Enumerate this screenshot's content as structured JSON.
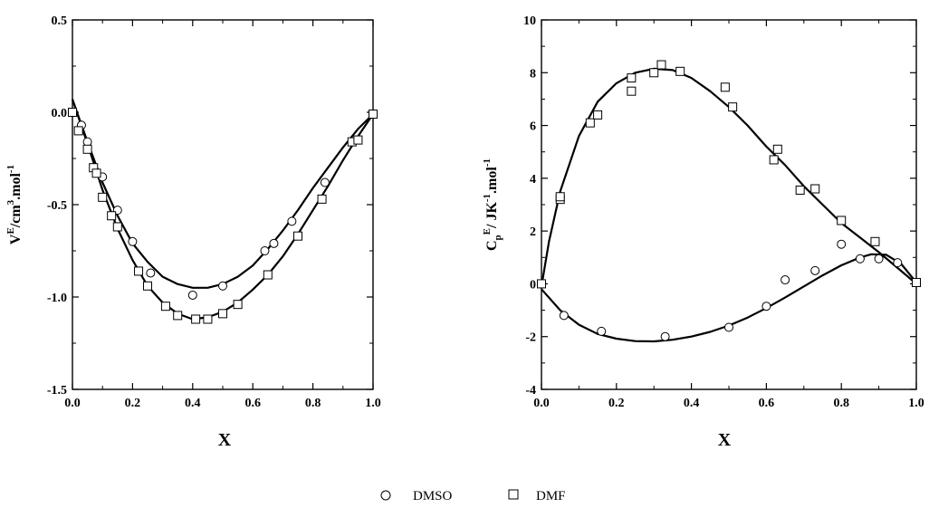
{
  "chart_data": [
    {
      "type": "scatter",
      "xlabel": "X",
      "ylabel_parts": {
        "main": "V",
        "sup": "E",
        "rest": "/cm",
        "sup2": "3",
        "rest2": ".mol",
        "sup3": "-1"
      },
      "xlim": [
        0,
        1
      ],
      "ylim": [
        -1.5,
        0.5
      ],
      "x_ticks": [
        "0.0",
        "0.2",
        "0.4",
        "0.6",
        "0.8",
        "1.0"
      ],
      "y_ticks": [
        "-1.5",
        "-1.0",
        "-0.5",
        "0.0",
        "0.5"
      ],
      "y_tick_values": [
        -1.5,
        -1.0,
        -0.5,
        0.0,
        0.5
      ],
      "grid": false,
      "series": [
        {
          "name": "DMSO",
          "marker": "circle",
          "points": [
            [
              0.0,
              0.0
            ],
            [
              0.03,
              -0.07
            ],
            [
              0.05,
              -0.16
            ],
            [
              0.1,
              -0.35
            ],
            [
              0.15,
              -0.53
            ],
            [
              0.2,
              -0.7
            ],
            [
              0.26,
              -0.87
            ],
            [
              0.4,
              -0.99
            ],
            [
              0.5,
              -0.94
            ],
            [
              0.64,
              -0.75
            ],
            [
              0.67,
              -0.71
            ],
            [
              0.73,
              -0.59
            ],
            [
              0.84,
              -0.38
            ],
            [
              1.0,
              -0.01
            ]
          ],
          "fit": [
            [
              0.0,
              0.07
            ],
            [
              0.05,
              -0.16
            ],
            [
              0.1,
              -0.38
            ],
            [
              0.15,
              -0.56
            ],
            [
              0.2,
              -0.71
            ],
            [
              0.25,
              -0.81
            ],
            [
              0.3,
              -0.89
            ],
            [
              0.35,
              -0.93
            ],
            [
              0.4,
              -0.95
            ],
            [
              0.45,
              -0.95
            ],
            [
              0.5,
              -0.93
            ],
            [
              0.55,
              -0.89
            ],
            [
              0.6,
              -0.83
            ],
            [
              0.65,
              -0.74
            ],
            [
              0.7,
              -0.64
            ],
            [
              0.75,
              -0.53
            ],
            [
              0.8,
              -0.41
            ],
            [
              0.85,
              -0.3
            ],
            [
              0.9,
              -0.19
            ],
            [
              0.95,
              -0.09
            ],
            [
              1.0,
              -0.01
            ]
          ]
        },
        {
          "name": "DMF",
          "marker": "square",
          "points": [
            [
              0.0,
              0.0
            ],
            [
              0.02,
              -0.1
            ],
            [
              0.05,
              -0.2
            ],
            [
              0.07,
              -0.3
            ],
            [
              0.08,
              -0.33
            ],
            [
              0.1,
              -0.46
            ],
            [
              0.13,
              -0.56
            ],
            [
              0.15,
              -0.62
            ],
            [
              0.22,
              -0.86
            ],
            [
              0.25,
              -0.94
            ],
            [
              0.31,
              -1.05
            ],
            [
              0.35,
              -1.1
            ],
            [
              0.41,
              -1.12
            ],
            [
              0.45,
              -1.12
            ],
            [
              0.5,
              -1.09
            ],
            [
              0.55,
              -1.04
            ],
            [
              0.65,
              -0.88
            ],
            [
              0.75,
              -0.67
            ],
            [
              0.83,
              -0.47
            ],
            [
              0.93,
              -0.16
            ],
            [
              0.95,
              -0.15
            ],
            [
              1.0,
              -0.01
            ]
          ]
        },
        {
          "name": "DMF fit",
          "marker": "none",
          "points": [],
          "fit": [
            [
              0.0,
              0.07
            ],
            [
              0.05,
              -0.17
            ],
            [
              0.1,
              -0.42
            ],
            [
              0.15,
              -0.63
            ],
            [
              0.2,
              -0.8
            ],
            [
              0.25,
              -0.94
            ],
            [
              0.3,
              -1.03
            ],
            [
              0.35,
              -1.09
            ],
            [
              0.4,
              -1.12
            ],
            [
              0.45,
              -1.11
            ],
            [
              0.5,
              -1.08
            ],
            [
              0.55,
              -1.03
            ],
            [
              0.6,
              -0.96
            ],
            [
              0.65,
              -0.88
            ],
            [
              0.7,
              -0.78
            ],
            [
              0.75,
              -0.66
            ],
            [
              0.8,
              -0.53
            ],
            [
              0.85,
              -0.4
            ],
            [
              0.9,
              -0.26
            ],
            [
              0.95,
              -0.13
            ],
            [
              1.0,
              -0.01
            ]
          ]
        }
      ]
    },
    {
      "type": "scatter",
      "xlabel": "X",
      "ylabel_parts": {
        "main": "C",
        "sub": "p",
        "sup": "E",
        "rest": "/ JK",
        "sup2": "-1",
        "rest2": ".mol",
        "sup3": "-1"
      },
      "xlim": [
        0,
        1
      ],
      "ylim": [
        -4,
        10
      ],
      "x_ticks": [
        "0.0",
        "0.2",
        "0.4",
        "0.6",
        "0.8",
        "1.0"
      ],
      "y_ticks": [
        "-4",
        "-2",
        "0",
        "2",
        "4",
        "6",
        "8",
        "10"
      ],
      "y_tick_values": [
        -4,
        -2,
        0,
        2,
        4,
        6,
        8,
        10
      ],
      "grid": false,
      "series": [
        {
          "name": "DMSO",
          "marker": "circle",
          "points": [
            [
              0.0,
              0.0
            ],
            [
              0.06,
              -1.2
            ],
            [
              0.16,
              -1.8
            ],
            [
              0.33,
              -2.0
            ],
            [
              0.5,
              -1.65
            ],
            [
              0.6,
              -0.85
            ],
            [
              0.65,
              0.15
            ],
            [
              0.73,
              0.5
            ],
            [
              0.8,
              1.5
            ],
            [
              0.85,
              0.95
            ],
            [
              0.9,
              0.95
            ],
            [
              0.95,
              0.8
            ]
          ],
          "fit": [
            [
              0.0,
              -0.2
            ],
            [
              0.05,
              -1.0
            ],
            [
              0.1,
              -1.55
            ],
            [
              0.15,
              -1.9
            ],
            [
              0.2,
              -2.08
            ],
            [
              0.25,
              -2.17
            ],
            [
              0.3,
              -2.18
            ],
            [
              0.35,
              -2.12
            ],
            [
              0.4,
              -2.0
            ],
            [
              0.45,
              -1.82
            ],
            [
              0.5,
              -1.58
            ],
            [
              0.55,
              -1.28
            ],
            [
              0.6,
              -0.92
            ],
            [
              0.65,
              -0.52
            ],
            [
              0.7,
              -0.1
            ],
            [
              0.75,
              0.32
            ],
            [
              0.8,
              0.7
            ],
            [
              0.85,
              1.0
            ],
            [
              0.88,
              1.12
            ],
            [
              0.92,
              1.1
            ],
            [
              0.96,
              0.75
            ],
            [
              1.0,
              0.05
            ]
          ]
        },
        {
          "name": "DMF",
          "marker": "square",
          "points": [
            [
              0.0,
              0.0
            ],
            [
              0.05,
              3.2
            ],
            [
              0.05,
              3.3
            ],
            [
              0.13,
              6.1
            ],
            [
              0.15,
              6.4
            ],
            [
              0.24,
              7.3
            ],
            [
              0.24,
              7.8
            ],
            [
              0.3,
              8.0
            ],
            [
              0.32,
              8.3
            ],
            [
              0.37,
              8.05
            ],
            [
              0.49,
              7.45
            ],
            [
              0.51,
              6.7
            ],
            [
              0.62,
              4.7
            ],
            [
              0.63,
              5.1
            ],
            [
              0.69,
              3.55
            ],
            [
              0.73,
              3.6
            ],
            [
              0.8,
              2.4
            ],
            [
              0.89,
              1.6
            ],
            [
              1.0,
              0.05
            ]
          ]
        },
        {
          "name": "DMF fit",
          "marker": "none",
          "points": [],
          "fit": [
            [
              0.0,
              -0.1
            ],
            [
              0.02,
              1.6
            ],
            [
              0.05,
              3.5
            ],
            [
              0.1,
              5.6
            ],
            [
              0.15,
              6.9
            ],
            [
              0.2,
              7.6
            ],
            [
              0.25,
              8.0
            ],
            [
              0.3,
              8.15
            ],
            [
              0.35,
              8.1
            ],
            [
              0.4,
              7.8
            ],
            [
              0.45,
              7.3
            ],
            [
              0.5,
              6.7
            ],
            [
              0.55,
              6.0
            ],
            [
              0.6,
              5.2
            ],
            [
              0.65,
              4.5
            ],
            [
              0.7,
              3.7
            ],
            [
              0.75,
              3.0
            ],
            [
              0.8,
              2.3
            ],
            [
              0.85,
              1.75
            ],
            [
              0.9,
              1.2
            ],
            [
              0.95,
              0.6
            ],
            [
              1.0,
              0.0
            ]
          ]
        }
      ]
    }
  ],
  "legend": {
    "items": [
      {
        "label": "DMSO",
        "marker": "circle"
      },
      {
        "label": "DMF",
        "marker": "square"
      }
    ]
  }
}
